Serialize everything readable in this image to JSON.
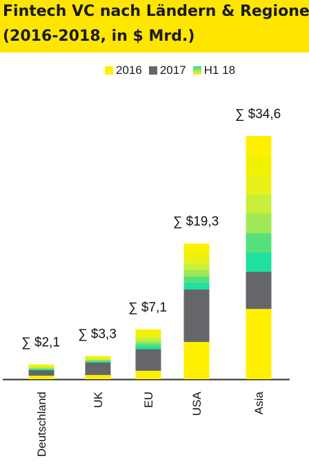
{
  "title": {
    "line1": "Fintech VC nach Ländern & Regionen",
    "line2": "(2016-2018, in $ Mrd.)"
  },
  "colors": {
    "title_band": "#ffe600",
    "y2016": "#fff000",
    "y2017": "#646669",
    "h118_gradient": [
      "#fff000",
      "#f2f200",
      "#e8f21a",
      "#c9ef3a",
      "#9fe857",
      "#56e07c",
      "#1fe0a0"
    ]
  },
  "chart_data": {
    "type": "bar",
    "stacked": true,
    "title": "Fintech VC nach Ländern & Regionen (2016-2018, in $ Mrd.)",
    "categories": [
      "Deutschland",
      "UK",
      "EU",
      "USA",
      "Asia"
    ],
    "series": [
      {
        "name": "2016",
        "values": [
          0.5,
          0.6,
          1.2,
          5.3,
          10.0
        ]
      },
      {
        "name": "2017",
        "values": [
          0.8,
          1.8,
          3.1,
          7.5,
          5.3
        ]
      },
      {
        "name": "H1 18",
        "values": [
          0.8,
          0.9,
          2.8,
          6.5,
          19.3
        ]
      }
    ],
    "totals": [
      "∑ $2,1",
      "∑ $3,3",
      "∑ $7,1",
      "∑ $19,3",
      "∑ $34,6"
    ],
    "ylim": [
      0,
      36
    ],
    "legend_position": "top-right",
    "grid": false
  }
}
